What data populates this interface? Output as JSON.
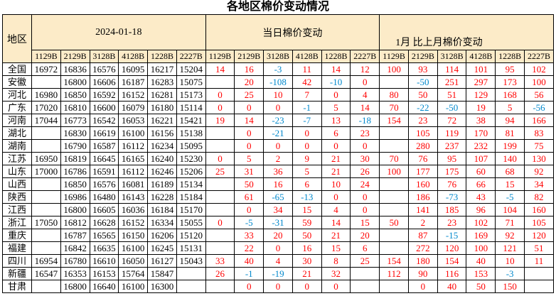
{
  "title": "各地区棉价变动情况",
  "colors": {
    "header_bg": "#FCEBC8",
    "positive_change": "#FF0000",
    "negative_change": "#0088CC",
    "grid": "#000000"
  },
  "table": {
    "region_header": "地区",
    "groups": [
      {
        "label": "2024-01-18"
      },
      {
        "label": "当日棉价变动"
      },
      {
        "label": "1月 比上月棉价变动"
      }
    ],
    "grades": [
      "1129B",
      "2129B",
      "3128B",
      "4128B",
      "1228B",
      "2227B"
    ],
    "rows": [
      {
        "region": "全国",
        "price": [
          "16972",
          "16836",
          "16576",
          "16095",
          "16217",
          "15204"
        ],
        "daily": [
          "14",
          "16",
          "-3",
          "11",
          "14",
          "12"
        ],
        "monthly": [
          "100",
          "93",
          "114",
          "101",
          "95",
          "102"
        ]
      },
      {
        "region": "安徽",
        "price": [
          "",
          "16800",
          "16606",
          "16187",
          "16283",
          "15075"
        ],
        "daily": [
          "",
          "20",
          "-108",
          "42",
          "-10",
          "0"
        ],
        "monthly": [
          "",
          "-50",
          "251",
          "297",
          "173",
          "100"
        ]
      },
      {
        "region": "河北",
        "price": [
          "16980",
          "16850",
          "16592",
          "16152",
          "16281",
          "15173"
        ],
        "daily": [
          "0",
          "25",
          "10",
          "7",
          "0",
          "4"
        ],
        "monthly": [
          "80",
          "50",
          "51",
          "129",
          "168",
          "56"
        ]
      },
      {
        "region": "广东",
        "price": [
          "17020",
          "16810",
          "16600",
          "16079",
          "16180",
          "15114"
        ],
        "daily": [
          "0",
          "0",
          "0",
          "-1",
          "5",
          "14"
        ],
        "monthly": [
          "70",
          "-22",
          "-50",
          "19",
          "5",
          "-56"
        ]
      },
      {
        "region": "河南",
        "price": [
          "17044",
          "16773",
          "16542",
          "16053",
          "16221",
          "15421"
        ],
        "daily": [
          "19",
          "14",
          "-23",
          "-7",
          "13",
          "-18"
        ],
        "monthly": [
          "154",
          "23",
          "72",
          "38",
          "94",
          "166"
        ]
      },
      {
        "region": "湖北",
        "price": [
          "",
          "16830",
          "16619",
          "16100",
          "16156",
          "15138"
        ],
        "daily": [
          "",
          "0",
          "-21",
          "0",
          "6",
          "23"
        ],
        "monthly": [
          "",
          "105",
          "119",
          "170",
          "81",
          "83"
        ]
      },
      {
        "region": "湖南",
        "price": [
          "",
          "16790",
          "16587",
          "16112",
          "16234",
          "15095"
        ],
        "daily": [
          "",
          "0",
          "0",
          "0",
          "0",
          "0"
        ],
        "monthly": [
          "",
          "280",
          "237",
          "232",
          "199",
          "75"
        ]
      },
      {
        "region": "江苏",
        "price": [
          "16950",
          "16819",
          "16645",
          "16165",
          "16240",
          "15230"
        ],
        "daily": [
          "0",
          "5",
          "2",
          "9",
          "21",
          "30"
        ],
        "monthly": [
          "70",
          "76",
          "95",
          "107",
          "140",
          "130"
        ]
      },
      {
        "region": "山东",
        "price": [
          "17000",
          "16786",
          "16591",
          "16112",
          "16246",
          "15206"
        ],
        "daily": [
          "25",
          "31",
          "36",
          "5",
          "21",
          "26"
        ],
        "monthly": [
          "100",
          "177",
          "175",
          "60",
          "68",
          "92"
        ]
      },
      {
        "region": "山西",
        "price": [
          "",
          "16850",
          "16576",
          "16081",
          "16189",
          "15134"
        ],
        "daily": [
          "",
          "50",
          "16",
          "6",
          "10",
          "24"
        ],
        "monthly": [
          "",
          "160",
          "76",
          "66",
          "15",
          "34"
        ]
      },
      {
        "region": "陕西",
        "price": [
          "",
          "16986",
          "16480",
          "16143",
          "16228",
          "15184"
        ],
        "daily": [
          "",
          "61",
          "-65",
          "-13",
          "0",
          "0"
        ],
        "monthly": [
          "",
          "186",
          "-73",
          "43",
          "-5",
          "82"
        ]
      },
      {
        "region": "江西",
        "price": [
          "",
          "16800",
          "16605",
          "16036",
          "16184",
          "15170"
        ],
        "daily": [
          "",
          "0",
          "34",
          "15",
          "4",
          "0"
        ],
        "monthly": [
          "",
          "141",
          "185",
          "96",
          "104",
          "160"
        ]
      },
      {
        "region": "浙江",
        "price": [
          "17050",
          "16812",
          "16628",
          "16152",
          "16334",
          "15055"
        ],
        "daily": [
          "0",
          "-5",
          "-31",
          "59",
          "14",
          "15"
        ],
        "monthly": [
          "50",
          "2",
          "23",
          "102",
          "71",
          "105"
        ]
      },
      {
        "region": "重庆",
        "price": [
          "",
          "16787",
          "16565",
          "16150",
          "16206",
          "15120"
        ],
        "daily": [
          "",
          "33",
          "20",
          "50",
          "21",
          "20"
        ],
        "monthly": [
          "",
          "87",
          "-15",
          "169",
          "92",
          "120"
        ]
      },
      {
        "region": "福建",
        "price": [
          "",
          "16842",
          "16635",
          "16100",
          "16245",
          "15131"
        ],
        "daily": [
          "",
          "22",
          "0",
          "16",
          "15",
          "6"
        ],
        "monthly": [
          "",
          "272",
          "120",
          "100",
          "121",
          "51"
        ]
      },
      {
        "region": "四川",
        "price": [
          "16954",
          "16780",
          "16610",
          "16050",
          "16127",
          "15043"
        ],
        "daily": [
          "33",
          "40",
          "4",
          "30",
          "8",
          "25"
        ],
        "monthly": [
          "154",
          "180",
          "154",
          "40",
          "10",
          "11"
        ]
      },
      {
        "region": "新疆",
        "price": [
          "16547",
          "16353",
          "16153",
          "15764",
          "15847",
          ""
        ],
        "daily": [
          "26",
          "-1",
          "-19",
          "21",
          "32",
          ""
        ],
        "monthly": [
          "112",
          "90",
          "116",
          "153",
          "-3",
          ""
        ]
      },
      {
        "region": "甘肃",
        "price": [
          "",
          "16800",
          "16640",
          "16100",
          "16300",
          ""
        ],
        "daily": [
          "",
          "0",
          "0",
          "0",
          "0",
          ""
        ],
        "monthly": [
          "",
          "0",
          "40",
          "50",
          "150",
          ""
        ]
      }
    ]
  }
}
